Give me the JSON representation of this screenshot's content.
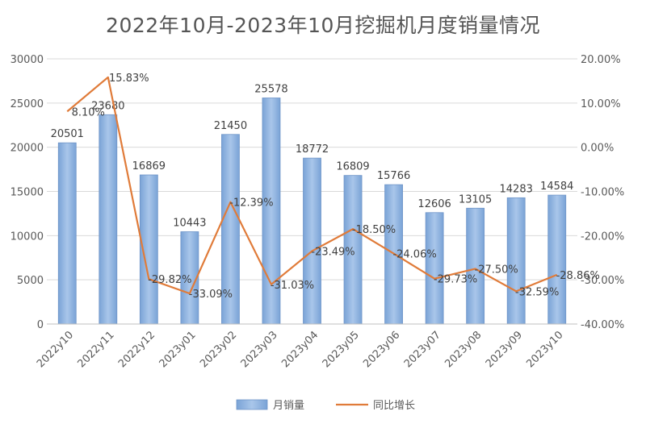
{
  "chart_data": {
    "type": "bar",
    "title": "2022年10月-2023年10月挖掘机月度销量情况",
    "categories": [
      "2022y10",
      "2022y11",
      "2022y12",
      "2023y01",
      "2023y02",
      "2023y03",
      "2023y04",
      "2023y05",
      "2023y06",
      "2023y07",
      "2023y08",
      "2023y09",
      "2023y10"
    ],
    "series": [
      {
        "name": "月销量",
        "type": "bar",
        "axis": "left",
        "color": "#8fb3e0",
        "values": [
          20501,
          23680,
          16869,
          10443,
          21450,
          25578,
          18772,
          16809,
          15766,
          12606,
          13105,
          14283,
          14584
        ],
        "labels": [
          "20501",
          "23680",
          "16869",
          "10443",
          "21450",
          "25578",
          "18772",
          "16809",
          "15766",
          "12606",
          "13105",
          "14283",
          "14584"
        ]
      },
      {
        "name": "同比增长",
        "type": "line",
        "axis": "right",
        "color": "#e07b39",
        "values": [
          8.1,
          15.83,
          -29.82,
          -33.09,
          -12.39,
          -31.03,
          -23.49,
          -18.5,
          -24.06,
          -29.73,
          -27.5,
          -32.59,
          -28.86
        ],
        "labels": [
          "8.10%",
          "15.83%",
          "-29.82%",
          "-33.09%",
          "-12.39%",
          "-31.03%",
          "-23.49%",
          "-18.50%",
          "-24.06%",
          "-29.73%",
          "-27.50%",
          "-32.59%",
          "-28.86%"
        ]
      }
    ],
    "y_left": {
      "min": 0,
      "max": 30000,
      "ticks": [
        "0",
        "5000",
        "10000",
        "15000",
        "20000",
        "25000",
        "30000"
      ]
    },
    "y_right": {
      "min": -40,
      "max": 20,
      "ticks": [
        "-40.00%",
        "-30.00%",
        "-20.00%",
        "-10.00%",
        "0.00%",
        "10.00%",
        "20.00%"
      ]
    },
    "grid": true,
    "legend_position": "bottom"
  }
}
